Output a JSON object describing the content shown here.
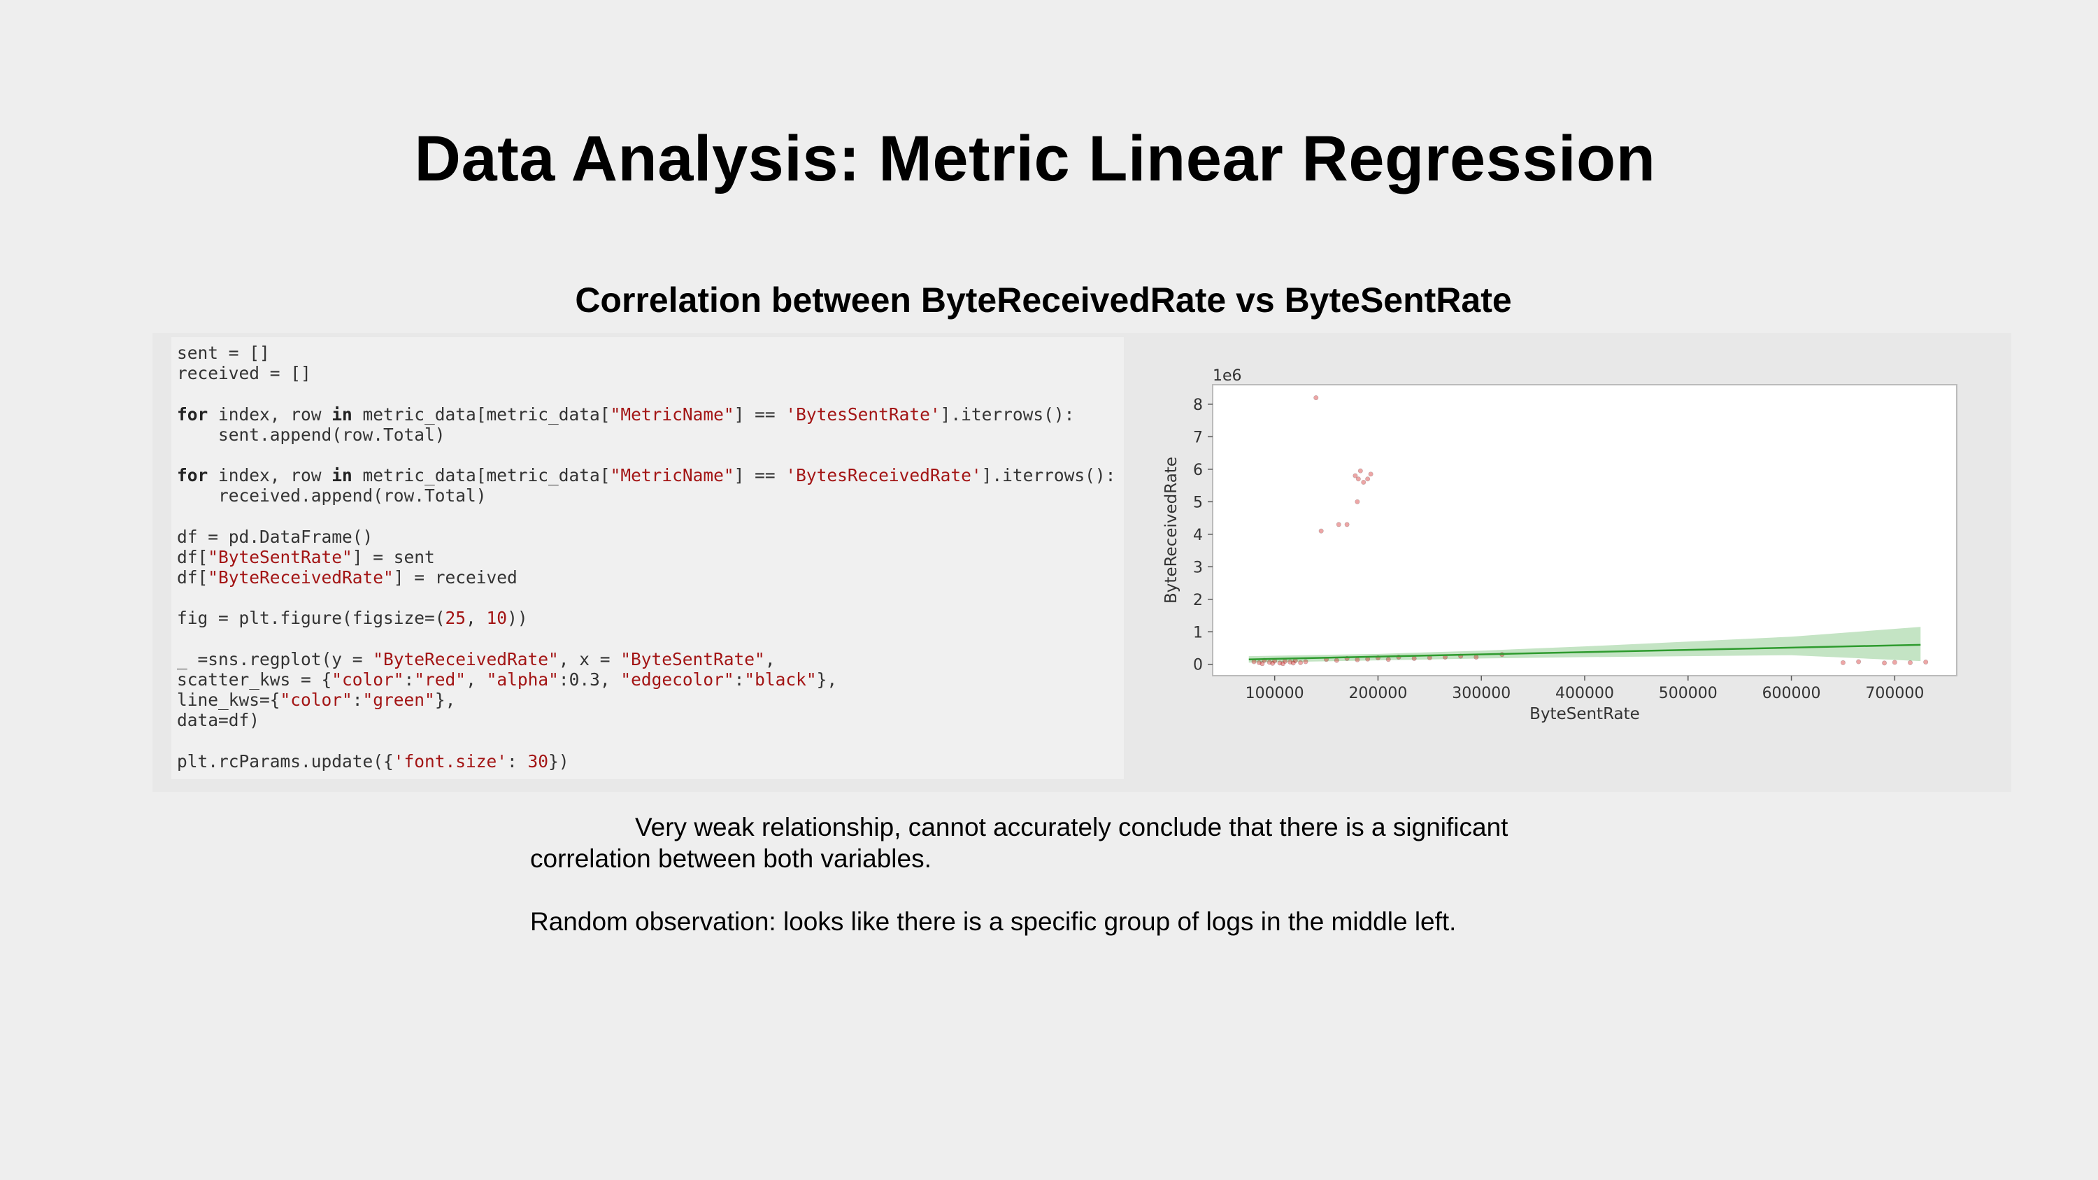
{
  "slide": {
    "title": "Data Analysis: Metric Linear Regression",
    "subtitle": "Correlation between ByteReceivedRate vs ByteSentRate",
    "notes": [
      "Very weak relationship, cannot accurately conclude that there is a significant correlation between both variables.",
      "Random observation: looks like there is a specific group of logs in the middle left."
    ]
  },
  "code_lines": [
    [
      {
        "t": "sent = []"
      }
    ],
    [
      {
        "t": "received = []"
      }
    ],
    [],
    [
      {
        "t": "for",
        "c": "kw"
      },
      {
        "t": " index, row "
      },
      {
        "t": "in",
        "c": "kw"
      },
      {
        "t": " metric_data[metric_data["
      },
      {
        "t": "\"MetricName\"",
        "c": "str"
      },
      {
        "t": "] == "
      },
      {
        "t": "'BytesSentRate'",
        "c": "str"
      },
      {
        "t": "].iterrows():"
      }
    ],
    [
      {
        "t": "    sent.append(row.Total)"
      }
    ],
    [],
    [
      {
        "t": "for",
        "c": "kw"
      },
      {
        "t": " index, row "
      },
      {
        "t": "in",
        "c": "kw"
      },
      {
        "t": " metric_data[metric_data["
      },
      {
        "t": "\"MetricName\"",
        "c": "str"
      },
      {
        "t": "] == "
      },
      {
        "t": "'BytesReceivedRate'",
        "c": "str"
      },
      {
        "t": "].iterrows():"
      }
    ],
    [
      {
        "t": "    received.append(row.Total)"
      }
    ],
    [],
    [
      {
        "t": "df = pd.DataFrame()"
      }
    ],
    [
      {
        "t": "df["
      },
      {
        "t": "\"ByteSentRate\"",
        "c": "str"
      },
      {
        "t": "] = sent"
      }
    ],
    [
      {
        "t": "df["
      },
      {
        "t": "\"ByteReceivedRate\"",
        "c": "str"
      },
      {
        "t": "] = received"
      }
    ],
    [],
    [
      {
        "t": "fig = plt.figure(figsize=("
      },
      {
        "t": "25",
        "c": "num"
      },
      {
        "t": ", "
      },
      {
        "t": "10",
        "c": "num"
      },
      {
        "t": "))"
      }
    ],
    [],
    [
      {
        "t": "_ =sns.regplot(y = "
      },
      {
        "t": "\"ByteReceivedRate\"",
        "c": "str"
      },
      {
        "t": ", x = "
      },
      {
        "t": "\"ByteSentRate\"",
        "c": "str"
      },
      {
        "t": ","
      }
    ],
    [
      {
        "t": "scatter_kws = {"
      },
      {
        "t": "\"color\"",
        "c": "str"
      },
      {
        "t": ":"
      },
      {
        "t": "\"red\"",
        "c": "str"
      },
      {
        "t": ", "
      },
      {
        "t": "\"alpha\"",
        "c": "str"
      },
      {
        "t": ":0.3, "
      },
      {
        "t": "\"edgecolor\"",
        "c": "str"
      },
      {
        "t": ":"
      },
      {
        "t": "\"black\"",
        "c": "str"
      },
      {
        "t": "},"
      }
    ],
    [
      {
        "t": "line_kws={"
      },
      {
        "t": "\"color\"",
        "c": "str"
      },
      {
        "t": ":"
      },
      {
        "t": "\"green\"",
        "c": "str"
      },
      {
        "t": "},"
      }
    ],
    [
      {
        "t": "data=df)"
      }
    ],
    [],
    [
      {
        "t": "plt.rcParams.update({"
      },
      {
        "t": "'font.size'",
        "c": "str"
      },
      {
        "t": ": "
      },
      {
        "t": "30",
        "c": "num"
      },
      {
        "t": "})"
      }
    ]
  ],
  "chart_data": {
    "type": "scatter",
    "xlabel": "ByteSentRate",
    "ylabel": "ByteReceivedRate",
    "y_scale_label": "1e6",
    "xlim": [
      40000,
      760000
    ],
    "ylim": [
      -0.35,
      8.6
    ],
    "x_ticks": [
      100000,
      200000,
      300000,
      400000,
      500000,
      600000,
      700000
    ],
    "x_tick_labels": [
      "100000",
      "200000",
      "300000",
      "400000",
      "500000",
      "600000",
      "700000"
    ],
    "y_ticks": [
      0,
      1,
      2,
      3,
      4,
      5,
      6,
      7,
      8
    ],
    "y_tick_labels": [
      "0",
      "1",
      "2",
      "3",
      "4",
      "5",
      "6",
      "7",
      "8"
    ],
    "grid": false,
    "colors": {
      "points": "#cc0000",
      "line": "#2e9b2e",
      "band": "#7cc47c"
    },
    "points": [
      [
        140000,
        8.2
      ],
      [
        178000,
        5.8
      ],
      [
        183000,
        5.95
      ],
      [
        190000,
        5.7
      ],
      [
        186000,
        5.6
      ],
      [
        193000,
        5.85
      ],
      [
        181000,
        5.7
      ],
      [
        180000,
        5.0
      ],
      [
        170000,
        4.3
      ],
      [
        162000,
        4.3
      ],
      [
        145000,
        4.1
      ],
      [
        80000,
        0.08
      ],
      [
        85000,
        0.05
      ],
      [
        90000,
        0.12
      ],
      [
        95000,
        0.06
      ],
      [
        100000,
        0.1
      ],
      [
        105000,
        0.04
      ],
      [
        110000,
        0.09
      ],
      [
        115000,
        0.07
      ],
      [
        120000,
        0.11
      ],
      [
        125000,
        0.05
      ],
      [
        130000,
        0.08
      ],
      [
        88000,
        0.02
      ],
      [
        98000,
        0.03
      ],
      [
        108000,
        0.02
      ],
      [
        118000,
        0.04
      ],
      [
        150000,
        0.15
      ],
      [
        160000,
        0.12
      ],
      [
        170000,
        0.18
      ],
      [
        180000,
        0.14
      ],
      [
        190000,
        0.16
      ],
      [
        200000,
        0.2
      ],
      [
        210000,
        0.15
      ],
      [
        220000,
        0.22
      ],
      [
        235000,
        0.18
      ],
      [
        250000,
        0.2
      ],
      [
        265000,
        0.22
      ],
      [
        280000,
        0.25
      ],
      [
        295000,
        0.22
      ],
      [
        320000,
        0.3
      ],
      [
        650000,
        0.05
      ],
      [
        665000,
        0.08
      ],
      [
        690000,
        0.04
      ],
      [
        700000,
        0.06
      ],
      [
        715000,
        0.05
      ],
      [
        730000,
        0.07
      ]
    ],
    "regression_line": {
      "x": [
        75000,
        725000
      ],
      "y": [
        0.15,
        0.6
      ]
    },
    "confidence_band": {
      "x": [
        75000,
        200000,
        300000,
        400000,
        500000,
        600000,
        725000
      ],
      "upper": [
        0.25,
        0.32,
        0.42,
        0.55,
        0.7,
        0.85,
        1.15
      ],
      "lower": [
        0.05,
        0.12,
        0.18,
        0.22,
        0.25,
        0.28,
        0.1
      ]
    }
  }
}
